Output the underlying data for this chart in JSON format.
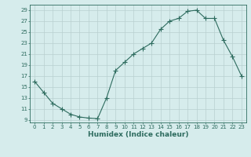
{
  "x": [
    0,
    1,
    2,
    3,
    4,
    5,
    6,
    7,
    8,
    9,
    10,
    11,
    12,
    13,
    14,
    15,
    16,
    17,
    18,
    19,
    20,
    21,
    22,
    23
  ],
  "y": [
    16,
    14,
    12,
    11,
    10,
    9.5,
    9.3,
    9.2,
    13,
    18,
    19.5,
    21,
    22,
    23,
    25.5,
    27,
    27.5,
    28.8,
    29,
    27.5,
    27.5,
    23.5,
    20.5,
    17
  ],
  "xlabel": "Humidex (Indice chaleur)",
  "ylabel_ticks": [
    9,
    11,
    13,
    15,
    17,
    19,
    21,
    23,
    25,
    27,
    29
  ],
  "ylim": [
    8.5,
    30
  ],
  "xlim": [
    -0.5,
    23.5
  ],
  "line_color": "#2d6b5e",
  "bg_color": "#d6ecec",
  "grid_color": "#b8d0d0",
  "marker": "+",
  "markersize": 4,
  "tick_fontsize": 5,
  "xlabel_fontsize": 6.5
}
